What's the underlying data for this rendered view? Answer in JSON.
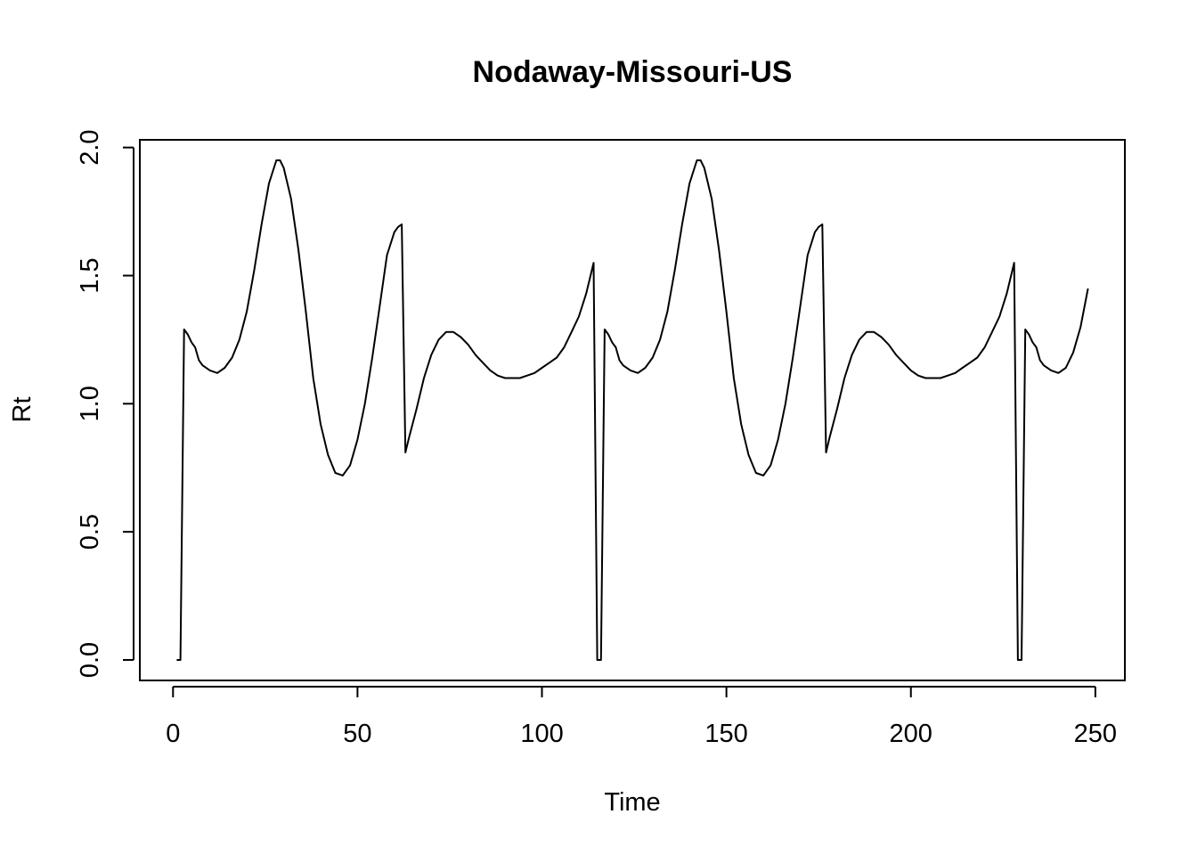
{
  "chart_data": {
    "type": "line",
    "title": "Nodaway-Missouri-US",
    "xlabel": "Time",
    "ylabel": "Rt",
    "xlim": [
      -9,
      258
    ],
    "ylim": [
      -0.08,
      2.03
    ],
    "x_ticks": [
      0,
      50,
      100,
      150,
      200,
      250
    ],
    "x_tick_labels": [
      "0",
      "50",
      "100",
      "150",
      "200",
      "250"
    ],
    "y_ticks": [
      0.0,
      0.5,
      1.0,
      1.5,
      2.0
    ],
    "y_tick_labels": [
      "0.0",
      "0.5",
      "1.0",
      "1.5",
      "2.0"
    ],
    "grid": false,
    "series": [
      {
        "color": "#000000",
        "points": [
          [
            1,
            0.0
          ],
          [
            2,
            0.0
          ],
          [
            3,
            1.29
          ],
          [
            4,
            1.27
          ],
          [
            5,
            1.24
          ],
          [
            6,
            1.22
          ],
          [
            7,
            1.17
          ],
          [
            8,
            1.15
          ],
          [
            10,
            1.13
          ],
          [
            12,
            1.12
          ],
          [
            14,
            1.14
          ],
          [
            16,
            1.18
          ],
          [
            18,
            1.25
          ],
          [
            20,
            1.36
          ],
          [
            22,
            1.52
          ],
          [
            24,
            1.7
          ],
          [
            26,
            1.86
          ],
          [
            28,
            1.95
          ],
          [
            29,
            1.95
          ],
          [
            30,
            1.92
          ],
          [
            32,
            1.8
          ],
          [
            34,
            1.6
          ],
          [
            36,
            1.36
          ],
          [
            38,
            1.1
          ],
          [
            40,
            0.92
          ],
          [
            42,
            0.8
          ],
          [
            44,
            0.73
          ],
          [
            46,
            0.72
          ],
          [
            48,
            0.76
          ],
          [
            50,
            0.86
          ],
          [
            52,
            1.0
          ],
          [
            54,
            1.18
          ],
          [
            56,
            1.38
          ],
          [
            58,
            1.58
          ],
          [
            60,
            1.67
          ],
          [
            61,
            1.69
          ],
          [
            62,
            1.7
          ],
          [
            63,
            0.81
          ],
          [
            64,
            0.87
          ],
          [
            66,
            0.98
          ],
          [
            68,
            1.1
          ],
          [
            70,
            1.19
          ],
          [
            72,
            1.25
          ],
          [
            74,
            1.28
          ],
          [
            76,
            1.28
          ],
          [
            78,
            1.26
          ],
          [
            80,
            1.23
          ],
          [
            82,
            1.19
          ],
          [
            84,
            1.16
          ],
          [
            86,
            1.13
          ],
          [
            88,
            1.11
          ],
          [
            90,
            1.1
          ],
          [
            92,
            1.1
          ],
          [
            94,
            1.1
          ],
          [
            96,
            1.11
          ],
          [
            98,
            1.12
          ],
          [
            100,
            1.14
          ],
          [
            102,
            1.16
          ],
          [
            104,
            1.18
          ],
          [
            106,
            1.22
          ],
          [
            108,
            1.28
          ],
          [
            110,
            1.34
          ],
          [
            112,
            1.43
          ],
          [
            114,
            1.55
          ],
          [
            115,
            0.0
          ],
          [
            116,
            0.0
          ],
          [
            117,
            1.29
          ],
          [
            118,
            1.27
          ],
          [
            119,
            1.24
          ],
          [
            120,
            1.22
          ],
          [
            121,
            1.17
          ],
          [
            122,
            1.15
          ],
          [
            124,
            1.13
          ],
          [
            126,
            1.12
          ],
          [
            128,
            1.14
          ],
          [
            130,
            1.18
          ],
          [
            132,
            1.25
          ],
          [
            134,
            1.36
          ],
          [
            136,
            1.52
          ],
          [
            138,
            1.7
          ],
          [
            140,
            1.86
          ],
          [
            142,
            1.95
          ],
          [
            143,
            1.95
          ],
          [
            144,
            1.92
          ],
          [
            146,
            1.8
          ],
          [
            148,
            1.6
          ],
          [
            150,
            1.36
          ],
          [
            152,
            1.1
          ],
          [
            154,
            0.92
          ],
          [
            156,
            0.8
          ],
          [
            158,
            0.73
          ],
          [
            160,
            0.72
          ],
          [
            162,
            0.76
          ],
          [
            164,
            0.86
          ],
          [
            166,
            1.0
          ],
          [
            168,
            1.18
          ],
          [
            170,
            1.38
          ],
          [
            172,
            1.58
          ],
          [
            174,
            1.67
          ],
          [
            175,
            1.69
          ],
          [
            176,
            1.7
          ],
          [
            177,
            0.81
          ],
          [
            178,
            0.87
          ],
          [
            180,
            0.98
          ],
          [
            182,
            1.1
          ],
          [
            184,
            1.19
          ],
          [
            186,
            1.25
          ],
          [
            188,
            1.28
          ],
          [
            190,
            1.28
          ],
          [
            192,
            1.26
          ],
          [
            194,
            1.23
          ],
          [
            196,
            1.19
          ],
          [
            198,
            1.16
          ],
          [
            200,
            1.13
          ],
          [
            202,
            1.11
          ],
          [
            204,
            1.1
          ],
          [
            206,
            1.1
          ],
          [
            208,
            1.1
          ],
          [
            210,
            1.11
          ],
          [
            212,
            1.12
          ],
          [
            214,
            1.14
          ],
          [
            216,
            1.16
          ],
          [
            218,
            1.18
          ],
          [
            220,
            1.22
          ],
          [
            222,
            1.28
          ],
          [
            224,
            1.34
          ],
          [
            226,
            1.43
          ],
          [
            228,
            1.55
          ],
          [
            229,
            0.0
          ],
          [
            230,
            0.0
          ],
          [
            231,
            1.29
          ],
          [
            232,
            1.27
          ],
          [
            233,
            1.24
          ],
          [
            234,
            1.22
          ],
          [
            235,
            1.17
          ],
          [
            236,
            1.15
          ],
          [
            238,
            1.13
          ],
          [
            240,
            1.12
          ],
          [
            242,
            1.14
          ],
          [
            244,
            1.2
          ],
          [
            246,
            1.3
          ],
          [
            248,
            1.45
          ]
        ]
      }
    ]
  }
}
